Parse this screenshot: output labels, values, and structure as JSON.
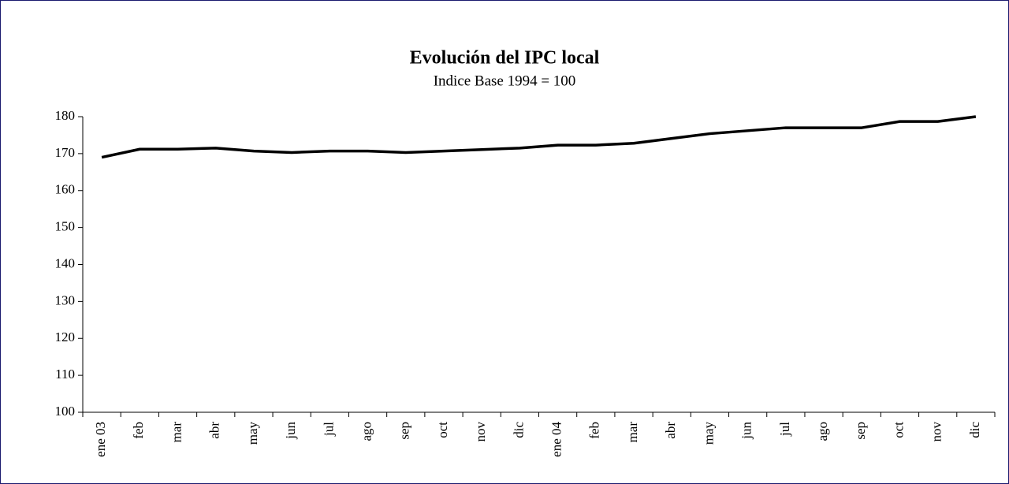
{
  "chart_data": {
    "type": "line",
    "title": "Evolución del IPC local",
    "subtitle": "Indice Base 1994 = 100",
    "categories": [
      "ene 03",
      "feb",
      "mar",
      "abr",
      "may",
      "jun",
      "jul",
      "ago",
      "sep",
      "oct",
      "nov",
      "dic",
      "ene 04",
      "feb",
      "mar",
      "abr",
      "may",
      "jun",
      "jul",
      "ago",
      "sep",
      "oct",
      "nov",
      "dic"
    ],
    "values": [
      169,
      171.2,
      171.2,
      171.5,
      170.7,
      170.3,
      170.7,
      170.7,
      170.3,
      170.7,
      171.1,
      171.5,
      172.3,
      172.3,
      172.8,
      174.1,
      175.4,
      176.2,
      177,
      177,
      177,
      178.7,
      178.7,
      180
    ],
    "color": "#000000",
    "ylim": [
      100,
      180
    ],
    "yticks": [
      100,
      110,
      120,
      130,
      140,
      150,
      160,
      170,
      180
    ],
    "grid": false
  }
}
